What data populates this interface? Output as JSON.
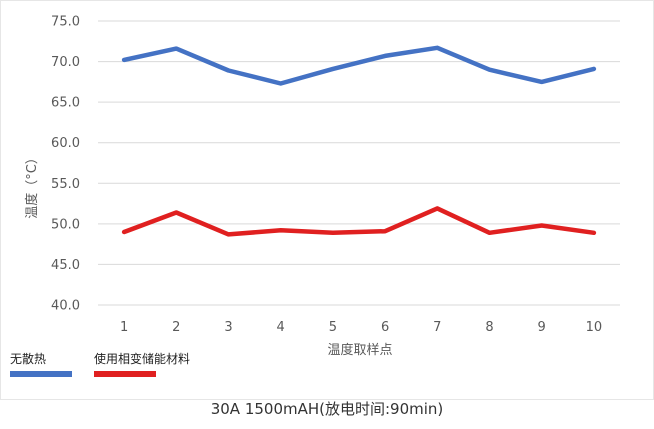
{
  "chart_data": {
    "type": "line",
    "title": "",
    "xlabel": "温度取样点",
    "ylabel": "温度（°C）",
    "categories": [
      "1",
      "2",
      "3",
      "4",
      "5",
      "6",
      "7",
      "8",
      "9",
      "10"
    ],
    "ylim": [
      40.0,
      75.0
    ],
    "yticks": [
      "40.0",
      "45.0",
      "50.0",
      "55.0",
      "60.0",
      "65.0",
      "70.0",
      "75.0"
    ],
    "grid": true,
    "legend_position": "bottom-left",
    "series": [
      {
        "name": "无散热",
        "color": "#4472c4",
        "values": [
          70.2,
          71.6,
          68.9,
          67.3,
          69.1,
          70.7,
          71.7,
          69.0,
          67.5,
          69.1
        ]
      },
      {
        "name": "使用相变储能材料",
        "color": "#e02020",
        "values": [
          49.0,
          51.4,
          48.7,
          49.2,
          48.9,
          49.1,
          51.9,
          48.9,
          49.8,
          48.9
        ]
      }
    ]
  },
  "caption": "30A 1500mAH(放电时间:90min)"
}
